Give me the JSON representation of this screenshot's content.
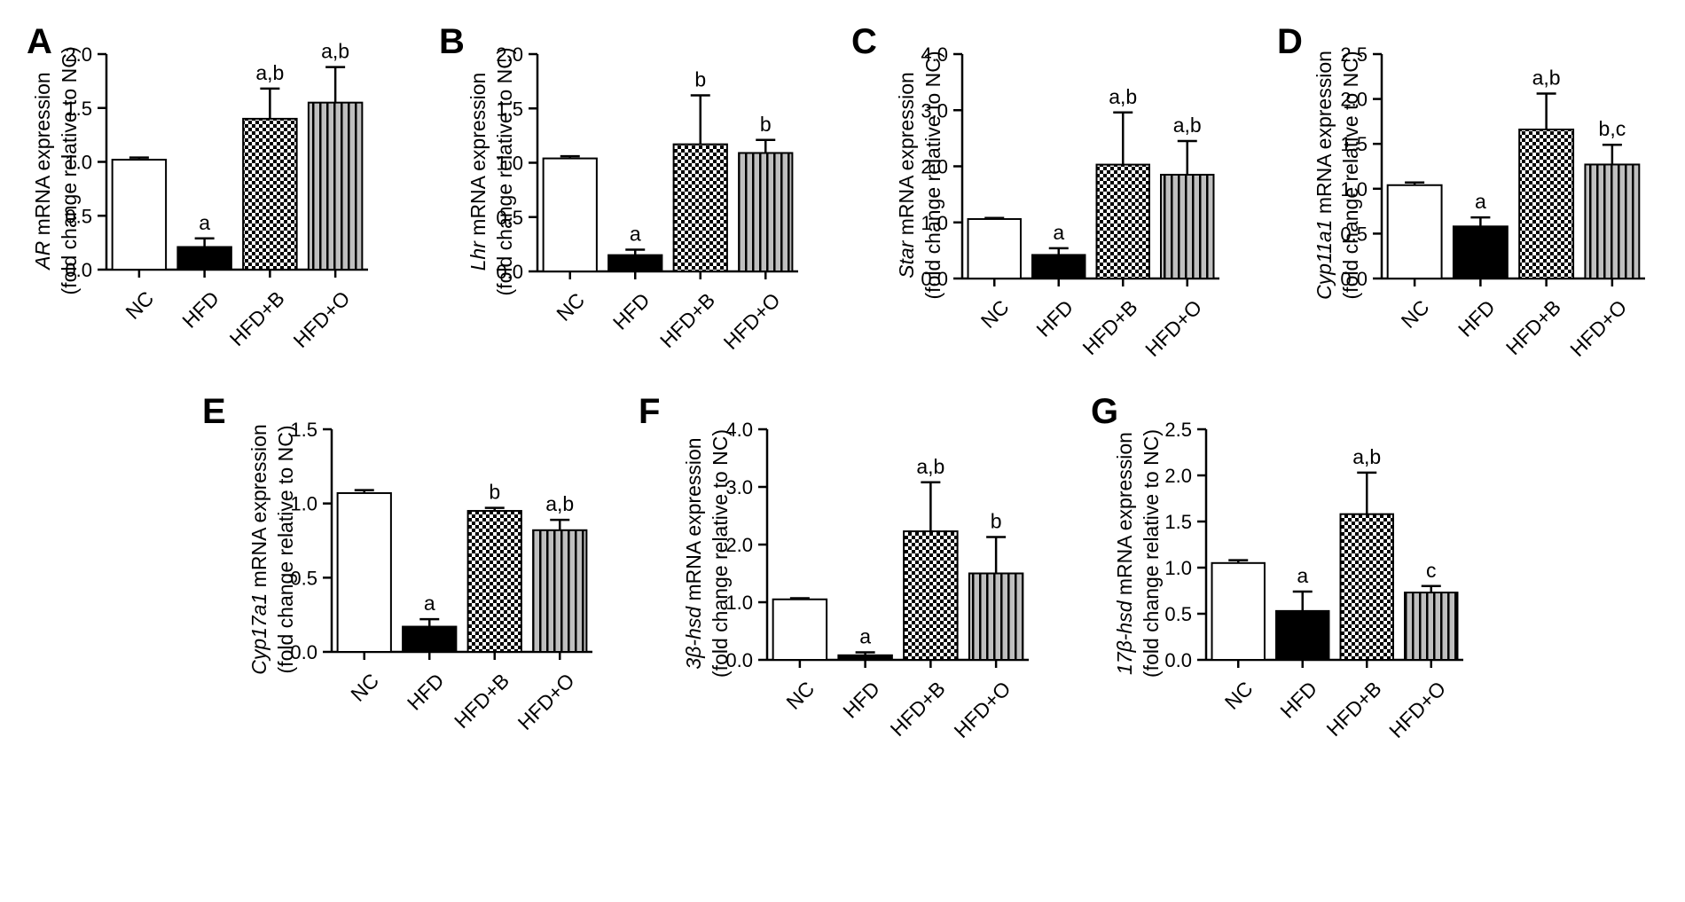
{
  "colors": {
    "axis": "#000000",
    "nc_fill": "#ffffff",
    "hfd_fill": "#000000",
    "hfdb_fill": "checkerboard",
    "hfdo_fill": "gray-vertical-stripes"
  },
  "chart_data": [
    {
      "panel": "A",
      "type": "bar",
      "categories": [
        "NC",
        "HFD",
        "HFD+B",
        "HFD+O"
      ],
      "values": [
        1.02,
        0.21,
        1.4,
        1.55
      ],
      "errors": [
        0.02,
        0.08,
        0.28,
        0.33
      ],
      "sig_labels": [
        "",
        "a",
        "a,b",
        "a,b"
      ],
      "ylabel_gene": "AR",
      "ylabel_rest": " mRNA expression",
      "ylabel2": "(fold change relative to NC)",
      "ylim": [
        0,
        2.0
      ],
      "yticks": [
        "0.0",
        "0.5",
        "1.0",
        "1.5",
        "2.0"
      ]
    },
    {
      "panel": "B",
      "type": "bar",
      "categories": [
        "NC",
        "HFD",
        "HFD+B",
        "HFD+O"
      ],
      "values": [
        1.04,
        0.15,
        1.17,
        1.09
      ],
      "errors": [
        0.02,
        0.05,
        0.45,
        0.12
      ],
      "sig_labels": [
        "",
        "a",
        "b",
        "b"
      ],
      "ylabel_gene": "Lhr",
      "ylabel_rest": " mRNA expression",
      "ylabel2": "(fold change relative to NC)",
      "ylim": [
        0,
        2.0
      ],
      "yticks": [
        "0.0",
        "0.5",
        "1.0",
        "1.5",
        "2.0"
      ]
    },
    {
      "panel": "C",
      "type": "bar",
      "categories": [
        "NC",
        "HFD",
        "HFD+B",
        "HFD+O"
      ],
      "values": [
        1.06,
        0.42,
        2.03,
        1.85
      ],
      "errors": [
        0.02,
        0.12,
        0.93,
        0.6
      ],
      "sig_labels": [
        "",
        "a",
        "a,b",
        "a,b"
      ],
      "ylabel_gene": "Star",
      "ylabel_rest": " mRNA expression",
      "ylabel2": "(fold change relative to NC)",
      "ylim": [
        0,
        4.0
      ],
      "yticks": [
        "0.0",
        "1.0",
        "2.0",
        "3.0",
        "4.0"
      ]
    },
    {
      "panel": "D",
      "type": "bar",
      "categories": [
        "NC",
        "HFD",
        "HFD+B",
        "HFD+O"
      ],
      "values": [
        1.04,
        0.58,
        1.66,
        1.27
      ],
      "errors": [
        0.03,
        0.1,
        0.4,
        0.22
      ],
      "sig_labels": [
        "",
        "a",
        "a,b",
        "b,c"
      ],
      "ylabel_gene": "Cyp11a1",
      "ylabel_rest": " mRNA expression",
      "ylabel2": "(fold change relative to NC)",
      "ylim": [
        0,
        2.5
      ],
      "yticks": [
        "0.0",
        "0.5",
        "1.0",
        "1.5",
        "2.0",
        "2.5"
      ]
    },
    {
      "panel": "E",
      "type": "bar",
      "categories": [
        "NC",
        "HFD",
        "HFD+B",
        "HFD+O"
      ],
      "values": [
        1.07,
        0.17,
        0.95,
        0.82
      ],
      "errors": [
        0.02,
        0.05,
        0.02,
        0.07
      ],
      "sig_labels": [
        "",
        "a",
        "b",
        "a,b"
      ],
      "ylabel_gene": "Cyp17a1",
      "ylabel_rest": " mRNA expression",
      "ylabel2": "(fold change relative to NC)",
      "ylim": [
        0,
        1.5
      ],
      "yticks": [
        "0.0",
        "0.5",
        "1.0",
        "1.5"
      ]
    },
    {
      "panel": "F",
      "type": "bar",
      "categories": [
        "NC",
        "HFD",
        "HFD+B",
        "HFD+O"
      ],
      "values": [
        1.05,
        0.08,
        2.23,
        1.5
      ],
      "errors": [
        0.02,
        0.05,
        0.85,
        0.63
      ],
      "sig_labels": [
        "",
        "a",
        "a,b",
        "b"
      ],
      "ylabel_gene": "3β-hsd",
      "ylabel_rest": " mRNA expression",
      "ylabel2": "(fold change relative to NC)",
      "ylim": [
        0,
        4.0
      ],
      "yticks": [
        "0.0",
        "1.0",
        "2.0",
        "3.0",
        "4.0"
      ]
    },
    {
      "panel": "G",
      "type": "bar",
      "categories": [
        "NC",
        "HFD",
        "HFD+B",
        "HFD+O"
      ],
      "values": [
        1.05,
        0.53,
        1.58,
        0.73
      ],
      "errors": [
        0.03,
        0.21,
        0.45,
        0.07
      ],
      "sig_labels": [
        "",
        "a",
        "a,b",
        "c"
      ],
      "ylabel_gene": "17β-hsd",
      "ylabel_rest": " mRNA expression",
      "ylabel2": "(fold change relative to NC)",
      "ylim": [
        0,
        2.5
      ],
      "yticks": [
        "0.0",
        "0.5",
        "1.0",
        "1.5",
        "2.0",
        "2.5"
      ]
    }
  ]
}
